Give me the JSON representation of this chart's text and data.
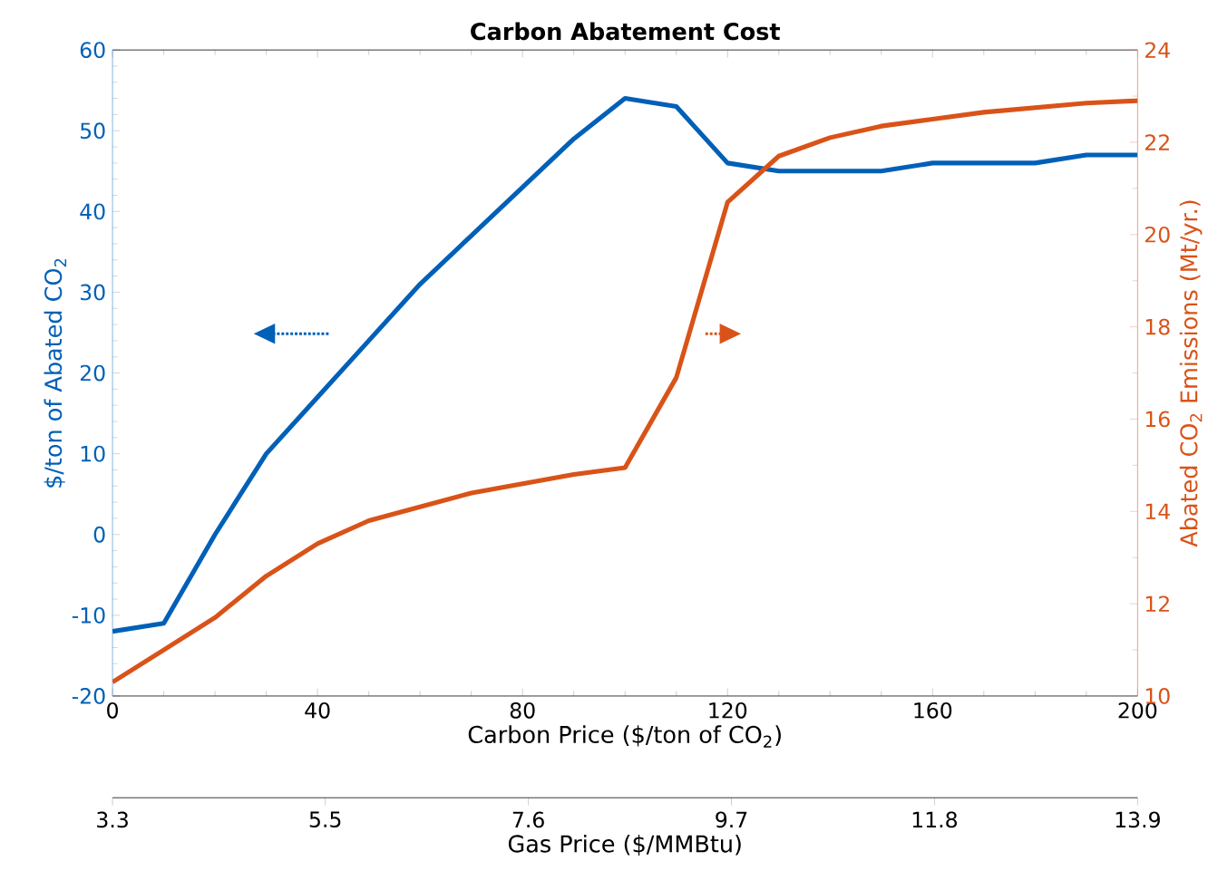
{
  "chart_data": {
    "type": "line",
    "title": "Carbon Abatement Cost",
    "xlabel": "Carbon Price ($/ton of CO$_{2}$)",
    "ylabel": "$/ton of Abated CO$_{2}$",
    "y2label": "Abated CO$_{2}$ Emissions (Mt/yr.)",
    "x2label": "Gas Price ($/MMBtu)",
    "x": [
      0,
      10,
      20,
      30,
      40,
      50,
      60,
      70,
      80,
      90,
      100,
      110,
      120,
      130,
      140,
      150,
      160,
      170,
      180,
      190,
      200
    ],
    "series": [
      {
        "color": "#0060b8",
        "values": [
          -12,
          -11,
          0,
          10,
          17,
          24,
          31,
          37,
          43,
          49,
          54,
          53,
          46,
          45,
          45,
          45,
          46,
          46,
          46,
          47,
          47
        ]
      },
      {
        "color": "#d95319",
        "axis": "y2",
        "values": [
          10.3,
          11,
          11.7,
          12.6,
          13.3,
          13.8,
          14.1,
          14.4,
          14.6,
          14.8,
          14.95,
          16.9,
          20.7,
          21.7,
          22.1,
          22.35,
          22.5,
          22.65,
          22.75,
          22.85,
          22.9
        ]
      }
    ],
    "xlim": [
      0,
      200
    ],
    "xticks": [
      0,
      40,
      80,
      120,
      160,
      200
    ],
    "ylim": [
      -20,
      60
    ],
    "yticks": [
      -20,
      -10,
      0,
      10,
      20,
      30,
      40,
      50,
      60
    ],
    "y2lim": [
      10,
      24
    ],
    "y2ticks": [
      10,
      12,
      14,
      16,
      18,
      20,
      22,
      24
    ],
    "x2lim": [
      3.3,
      13.9
    ],
    "x2ticks": [
      3.3,
      5.5,
      7.6,
      9.7,
      11.8,
      13.9
    ],
    "grid": false,
    "marker": "none",
    "line_style": "solid"
  }
}
